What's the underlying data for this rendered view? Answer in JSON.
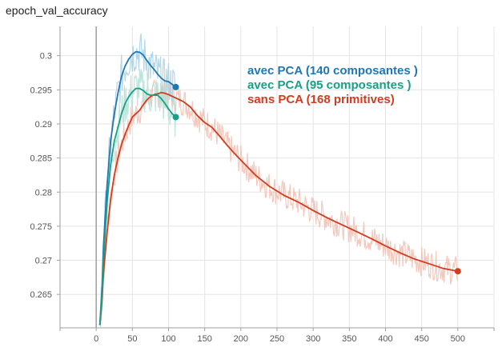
{
  "title": "epoch_val_accuracy",
  "colors": {
    "grid": "#e5e5e5",
    "axis": "#9e9e9e",
    "tick_text": "#555555",
    "title_text": "#212121"
  },
  "chart_data": {
    "type": "line",
    "title": "epoch_val_accuracy",
    "xlabel": "",
    "ylabel": "",
    "xlim": [
      -50,
      550
    ],
    "ylim": [
      0.2601,
      0.3043
    ],
    "xticks": [
      0,
      50,
      100,
      150,
      200,
      250,
      300,
      350,
      400,
      450,
      500
    ],
    "yticks": [
      0.265,
      0.27,
      0.275,
      0.28,
      0.285,
      0.29,
      0.295,
      0.3
    ],
    "ytick_labels": [
      "0.265",
      "0.27",
      "0.275",
      "0.28",
      "0.285",
      "0.29",
      "0.295",
      "0.3"
    ],
    "grid": true,
    "legend_position": "top-right",
    "series": [
      {
        "name": "avec PCA (140 composantes )",
        "color": "#1f77b4",
        "raw_color": "#a6d1e5",
        "x": [
          5,
          8,
          10,
          15,
          20,
          25,
          30,
          35,
          40,
          45,
          50,
          55,
          60,
          65,
          70,
          75,
          80,
          85,
          90,
          95,
          100,
          105,
          110
        ],
        "y": [
          0.2605,
          0.266,
          0.272,
          0.281,
          0.2875,
          0.2915,
          0.2945,
          0.297,
          0.2985,
          0.2995,
          0.3002,
          0.3006,
          0.3005,
          0.3001,
          0.2993,
          0.2986,
          0.298,
          0.2973,
          0.2967,
          0.2963,
          0.2962,
          0.2958,
          0.2954
        ]
      },
      {
        "name": "avec PCA (95 composantes )",
        "color": "#17a085",
        "raw_color": "#b4dfd6",
        "x": [
          5,
          8,
          10,
          15,
          20,
          25,
          30,
          35,
          40,
          45,
          50,
          55,
          60,
          65,
          70,
          75,
          80,
          85,
          90,
          95,
          100,
          105,
          110
        ],
        "y": [
          0.2605,
          0.265,
          0.27,
          0.2785,
          0.284,
          0.2875,
          0.2895,
          0.2915,
          0.293,
          0.294,
          0.2947,
          0.2952,
          0.2952,
          0.2949,
          0.2944,
          0.2942,
          0.2942,
          0.2942,
          0.2937,
          0.293,
          0.2922,
          0.2915,
          0.291
        ]
      },
      {
        "name": "sans PCA (168 primitives)",
        "color": "#d13c1f",
        "raw_color": "#f2c0b2",
        "x": [
          5,
          8,
          10,
          15,
          20,
          25,
          30,
          35,
          40,
          45,
          50,
          55,
          60,
          65,
          70,
          75,
          80,
          85,
          90,
          95,
          100,
          110,
          120,
          130,
          140,
          150,
          160,
          170,
          180,
          190,
          200,
          220,
          240,
          260,
          280,
          300,
          320,
          340,
          360,
          380,
          400,
          420,
          440,
          460,
          480,
          500
        ],
        "y": [
          0.2605,
          0.264,
          0.268,
          0.274,
          0.279,
          0.2825,
          0.285,
          0.287,
          0.2885,
          0.2898,
          0.291,
          0.2915,
          0.292,
          0.2928,
          0.2935,
          0.294,
          0.2943,
          0.2944,
          0.2946,
          0.2945,
          0.2943,
          0.2938,
          0.2933,
          0.2925,
          0.2912,
          0.2902,
          0.2895,
          0.2883,
          0.287,
          0.2858,
          0.2847,
          0.2825,
          0.2808,
          0.2795,
          0.2785,
          0.2773,
          0.2762,
          0.2752,
          0.2742,
          0.2732,
          0.2721,
          0.2711,
          0.2702,
          0.2695,
          0.2688,
          0.2684
        ]
      }
    ]
  }
}
